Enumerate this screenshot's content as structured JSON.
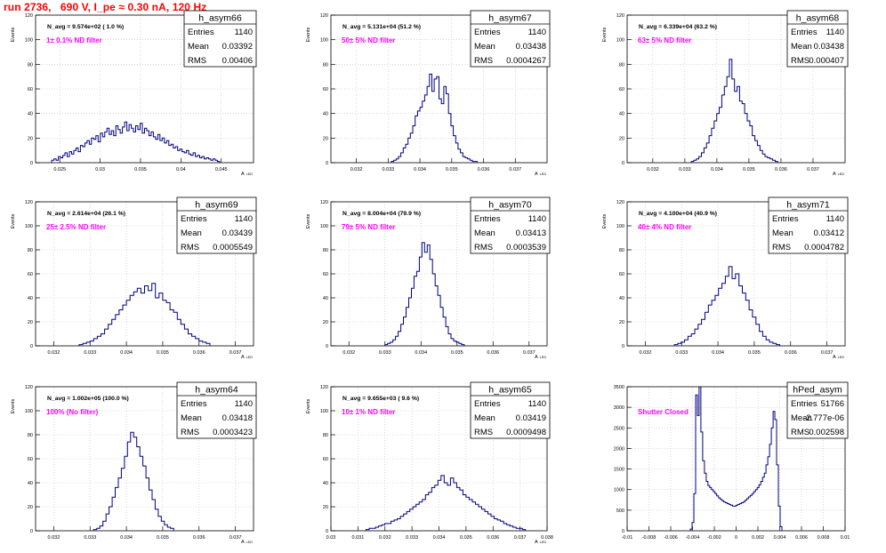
{
  "header": {
    "title": "run 2736,   690 V, I_pe ≈ 0.30 nA, 120 Hz"
  },
  "colors": {
    "title": "#ff0000",
    "filter_text": "#ff00ff",
    "histogram": "#000080",
    "grid": "#c0c0c0"
  },
  "stat_labels": {
    "entries": "Entries",
    "mean": "Mean",
    "rms": "RMS"
  },
  "chart_data": [
    {
      "type": "bar",
      "name": "h_asym66",
      "ylabel": "Events",
      "xlabel": "A_LED",
      "ylim": [
        0,
        120
      ],
      "yticks": [
        0,
        20,
        40,
        60,
        80,
        100,
        120
      ],
      "xlim": [
        0.022,
        0.049
      ],
      "xticks": [
        0.025,
        0.03,
        0.035,
        0.04,
        0.045
      ],
      "xtick_labels": [
        "0.025",
        "0.03",
        "0.035",
        "0.04",
        "0.045"
      ],
      "navg": "N_avg = 9.574e+02 ( 1.0 %)",
      "filter": "1± 0.1% ND filter",
      "entries": "1140",
      "mean": "0.03392",
      "rms": "0.00406",
      "bin_edges": [
        0.024,
        0.0448
      ],
      "counts": [
        2,
        3,
        2,
        5,
        4,
        6,
        8,
        5,
        9,
        7,
        10,
        12,
        9,
        14,
        13,
        16,
        18,
        15,
        20,
        19,
        22,
        17,
        24,
        21,
        25,
        28,
        23,
        26,
        22,
        30,
        27,
        24,
        29,
        33,
        26,
        31,
        28,
        25,
        30,
        27,
        32,
        24,
        28,
        26,
        22,
        25,
        21,
        19,
        23,
        18,
        20,
        16,
        18,
        14,
        15,
        12,
        13,
        10,
        11,
        9,
        8,
        10,
        7,
        6,
        8,
        5,
        6,
        4,
        5,
        3,
        4,
        3,
        2,
        3,
        2,
        1
      ]
    },
    {
      "type": "bar",
      "name": "h_asym67",
      "ylabel": "Events",
      "xlabel": "A_LED",
      "ylim": [
        0,
        120
      ],
      "yticks": [
        0,
        20,
        40,
        60,
        80,
        100,
        120
      ],
      "xlim": [
        0.0312,
        0.038
      ],
      "xticks": [
        0.032,
        0.033,
        0.034,
        0.035,
        0.036,
        0.037
      ],
      "xtick_labels": [
        "0.032",
        "0.033",
        "0.034",
        "0.035",
        "0.036",
        "0.037"
      ],
      "navg": "N_avg = 5.131e+04 (51.2 %)",
      "filter": "50± 5% ND filter",
      "entries": "1140",
      "mean": "0.03438",
      "rms": "0.0004267",
      "bin_edges": [
        0.0331,
        0.0358
      ],
      "counts": [
        1,
        2,
        3,
        5,
        8,
        12,
        15,
        20,
        24,
        30,
        38,
        42,
        45,
        50,
        55,
        62,
        72,
        58,
        68,
        70,
        52,
        48,
        62,
        56,
        40,
        30,
        22,
        16,
        11,
        8,
        5,
        4,
        3,
        2,
        1,
        1
      ]
    },
    {
      "type": "bar",
      "name": "h_asym68",
      "ylabel": "Events",
      "xlabel": "A_LED",
      "ylim": [
        0,
        120
      ],
      "yticks": [
        0,
        20,
        40,
        60,
        80,
        100,
        120
      ],
      "xlim": [
        0.0312,
        0.038
      ],
      "xticks": [
        0.032,
        0.033,
        0.034,
        0.035,
        0.036,
        0.037
      ],
      "xtick_labels": [
        "0.032",
        "0.033",
        "0.034",
        "0.035",
        "0.036",
        "0.037"
      ],
      "navg": "N_avg = 6.339e+04 (63.2 %)",
      "filter": "63± 5% ND filter",
      "entries": "1140",
      "mean": "0.03438",
      "rms": "0.000407",
      "bin_edges": [
        0.0332,
        0.0359
      ],
      "counts": [
        1,
        2,
        3,
        5,
        8,
        12,
        16,
        22,
        28,
        34,
        40,
        45,
        55,
        62,
        70,
        84,
        68,
        58,
        62,
        50,
        48,
        40,
        34,
        30,
        22,
        18,
        14,
        10,
        7,
        5,
        4,
        3,
        2,
        1
      ]
    },
    {
      "type": "bar",
      "name": "h_asym69",
      "ylabel": "Events",
      "xlabel": "A_LED",
      "ylim": [
        0,
        120
      ],
      "yticks": [
        0,
        20,
        40,
        60,
        80,
        100,
        120
      ],
      "xlim": [
        0.0315,
        0.0375
      ],
      "xticks": [
        0.032,
        0.033,
        0.034,
        0.035,
        0.036,
        0.037
      ],
      "xtick_labels": [
        "0.032",
        "0.033",
        "0.034",
        "0.035",
        "0.036",
        "0.037"
      ],
      "navg": "N_avg = 2.614e+04 (26.1 %)",
      "filter": "25± 2.5% ND filter",
      "entries": "1140",
      "mean": "0.03439",
      "rms": "0.0005549",
      "bin_edges": [
        0.0327,
        0.0363
      ],
      "counts": [
        1,
        2,
        3,
        4,
        6,
        8,
        10,
        14,
        18,
        22,
        26,
        30,
        34,
        38,
        42,
        45,
        48,
        44,
        50,
        46,
        52,
        40,
        44,
        38,
        36,
        30,
        28,
        22,
        18,
        14,
        10,
        8,
        6,
        4,
        3,
        2
      ]
    },
    {
      "type": "bar",
      "name": "h_asym70",
      "ylabel": "Events",
      "xlabel": "A_LED",
      "ylim": [
        0,
        120
      ],
      "yticks": [
        0,
        20,
        40,
        60,
        80,
        100,
        120
      ],
      "xlim": [
        0.0315,
        0.0375
      ],
      "xticks": [
        0.032,
        0.033,
        0.034,
        0.035,
        0.036,
        0.037
      ],
      "xtick_labels": [
        "0.032",
        "0.033",
        "0.034",
        "0.035",
        "0.036",
        "0.037"
      ],
      "navg": "N_avg = 8.004e+04 (79.9 %)",
      "filter": "79± 5% ND filter",
      "entries": "1140",
      "mean": "0.03413",
      "rms": "0.0003539",
      "bin_edges": [
        0.033,
        0.0352
      ],
      "counts": [
        1,
        2,
        3,
        5,
        8,
        12,
        18,
        24,
        32,
        40,
        48,
        58,
        62,
        74,
        86,
        78,
        84,
        72,
        60,
        50,
        42,
        32,
        24,
        16,
        10,
        6,
        4,
        3,
        2,
        1
      ]
    },
    {
      "type": "bar",
      "name": "h_asym71",
      "ylabel": "Events",
      "xlabel": "A_LED",
      "ylim": [
        0,
        120
      ],
      "yticks": [
        0,
        20,
        40,
        60,
        80,
        100,
        120
      ],
      "xlim": [
        0.0315,
        0.0375
      ],
      "xticks": [
        0.032,
        0.033,
        0.034,
        0.035,
        0.036,
        0.037
      ],
      "xtick_labels": [
        "0.032",
        "0.033",
        "0.034",
        "0.035",
        "0.036",
        "0.037"
      ],
      "navg": "N_avg = 4.100e+04 (40.9 %)",
      "filter": "40± 4% ND filter",
      "entries": "1140",
      "mean": "0.03412",
      "rms": "0.0004782",
      "bin_edges": [
        0.0328,
        0.0357
      ],
      "counts": [
        1,
        2,
        3,
        5,
        8,
        10,
        14,
        18,
        22,
        28,
        34,
        38,
        42,
        48,
        52,
        58,
        66,
        56,
        60,
        50,
        44,
        38,
        30,
        24,
        18,
        12,
        8,
        5,
        3,
        2,
        1
      ]
    },
    {
      "type": "bar",
      "name": "h_asym64",
      "ylabel": "Events",
      "xlabel": "A_LED",
      "ylim": [
        0,
        120
      ],
      "yticks": [
        0,
        20,
        40,
        60,
        80,
        100,
        120
      ],
      "xlim": [
        0.0315,
        0.0375
      ],
      "xticks": [
        0.032,
        0.033,
        0.034,
        0.035,
        0.036,
        0.037
      ],
      "xtick_labels": [
        "0.032",
        "0.033",
        "0.034",
        "0.035",
        "0.036",
        "0.037"
      ],
      "navg": "N_avg = 1.002e+05 (100.0 %)",
      "filter": "100% (No filter)",
      "entries": "1140",
      "mean": "0.03418",
      "rms": "0.0003423",
      "bin_edges": [
        0.0331,
        0.0353
      ],
      "counts": [
        1,
        2,
        4,
        8,
        14,
        20,
        28,
        36,
        44,
        52,
        62,
        74,
        82,
        78,
        70,
        62,
        54,
        44,
        34,
        26,
        18,
        12,
        8,
        5,
        3,
        2
      ]
    },
    {
      "type": "bar",
      "name": "h_asym65",
      "ylabel": "Events",
      "xlabel": "A_LED",
      "ylim": [
        0,
        120
      ],
      "yticks": [
        0,
        20,
        40,
        60,
        80,
        100,
        120
      ],
      "xlim": [
        0.03,
        0.038
      ],
      "xticks": [
        0.03,
        0.031,
        0.032,
        0.033,
        0.034,
        0.035,
        0.036,
        0.037,
        0.038
      ],
      "xtick_labels": [
        "0.03",
        "0.031",
        "0.032",
        "0.033",
        "0.034",
        "0.035",
        "0.036",
        "0.037",
        "0.038"
      ],
      "navg": "N_avg = 9.655e+03 ( 9.6 %)",
      "filter": "10± 1% ND filter",
      "entries": "1140",
      "mean": "0.03419",
      "rms": "0.0009498",
      "bin_edges": [
        0.0313,
        0.0372
      ],
      "counts": [
        1,
        2,
        2,
        3,
        4,
        5,
        6,
        6,
        8,
        9,
        10,
        12,
        14,
        16,
        18,
        20,
        22,
        24,
        26,
        30,
        32,
        36,
        38,
        42,
        46,
        40,
        38,
        44,
        40,
        36,
        34,
        30,
        28,
        26,
        24,
        22,
        20,
        18,
        16,
        14,
        12,
        10,
        9,
        8,
        6,
        5,
        4,
        3,
        2,
        2,
        1
      ]
    },
    {
      "type": "bar",
      "name": "hPed_asym",
      "ylabel": "",
      "xlabel": "",
      "ylim": [
        0,
        3500
      ],
      "yticks": [
        0,
        500,
        1000,
        1500,
        2000,
        2500,
        3000,
        3500
      ],
      "xlim": [
        -0.01,
        0.01
      ],
      "xticks": [
        -0.01,
        -0.008,
        -0.006,
        -0.004,
        -0.002,
        0,
        0.002,
        0.004,
        0.006,
        0.008,
        0.01
      ],
      "xtick_labels": [
        "-0.01",
        "-0.008",
        "-0.006",
        "-0.004",
        "-0.002",
        "0",
        "0.002",
        "0.004",
        "0.006",
        "0.008",
        "0.01"
      ],
      "navg": "",
      "filter": "Shutter Closed",
      "entries": "51766",
      "mean": "-2.777e-06",
      "rms": "0.002598",
      "bin_edges": [
        -0.0042,
        0.0042
      ],
      "counts": [
        40,
        200,
        900,
        3300,
        2800,
        3500,
        2400,
        1700,
        1400,
        1200,
        1100,
        1050,
        1000,
        950,
        900,
        850,
        800,
        760,
        730,
        700,
        680,
        660,
        640,
        620,
        600,
        600,
        620,
        640,
        660,
        680,
        700,
        740,
        780,
        820,
        860,
        900,
        950,
        1000,
        1050,
        1120,
        1200,
        1300,
        1400,
        1600,
        1800,
        2100,
        2500,
        2900,
        2700,
        1600,
        600,
        100
      ]
    }
  ]
}
